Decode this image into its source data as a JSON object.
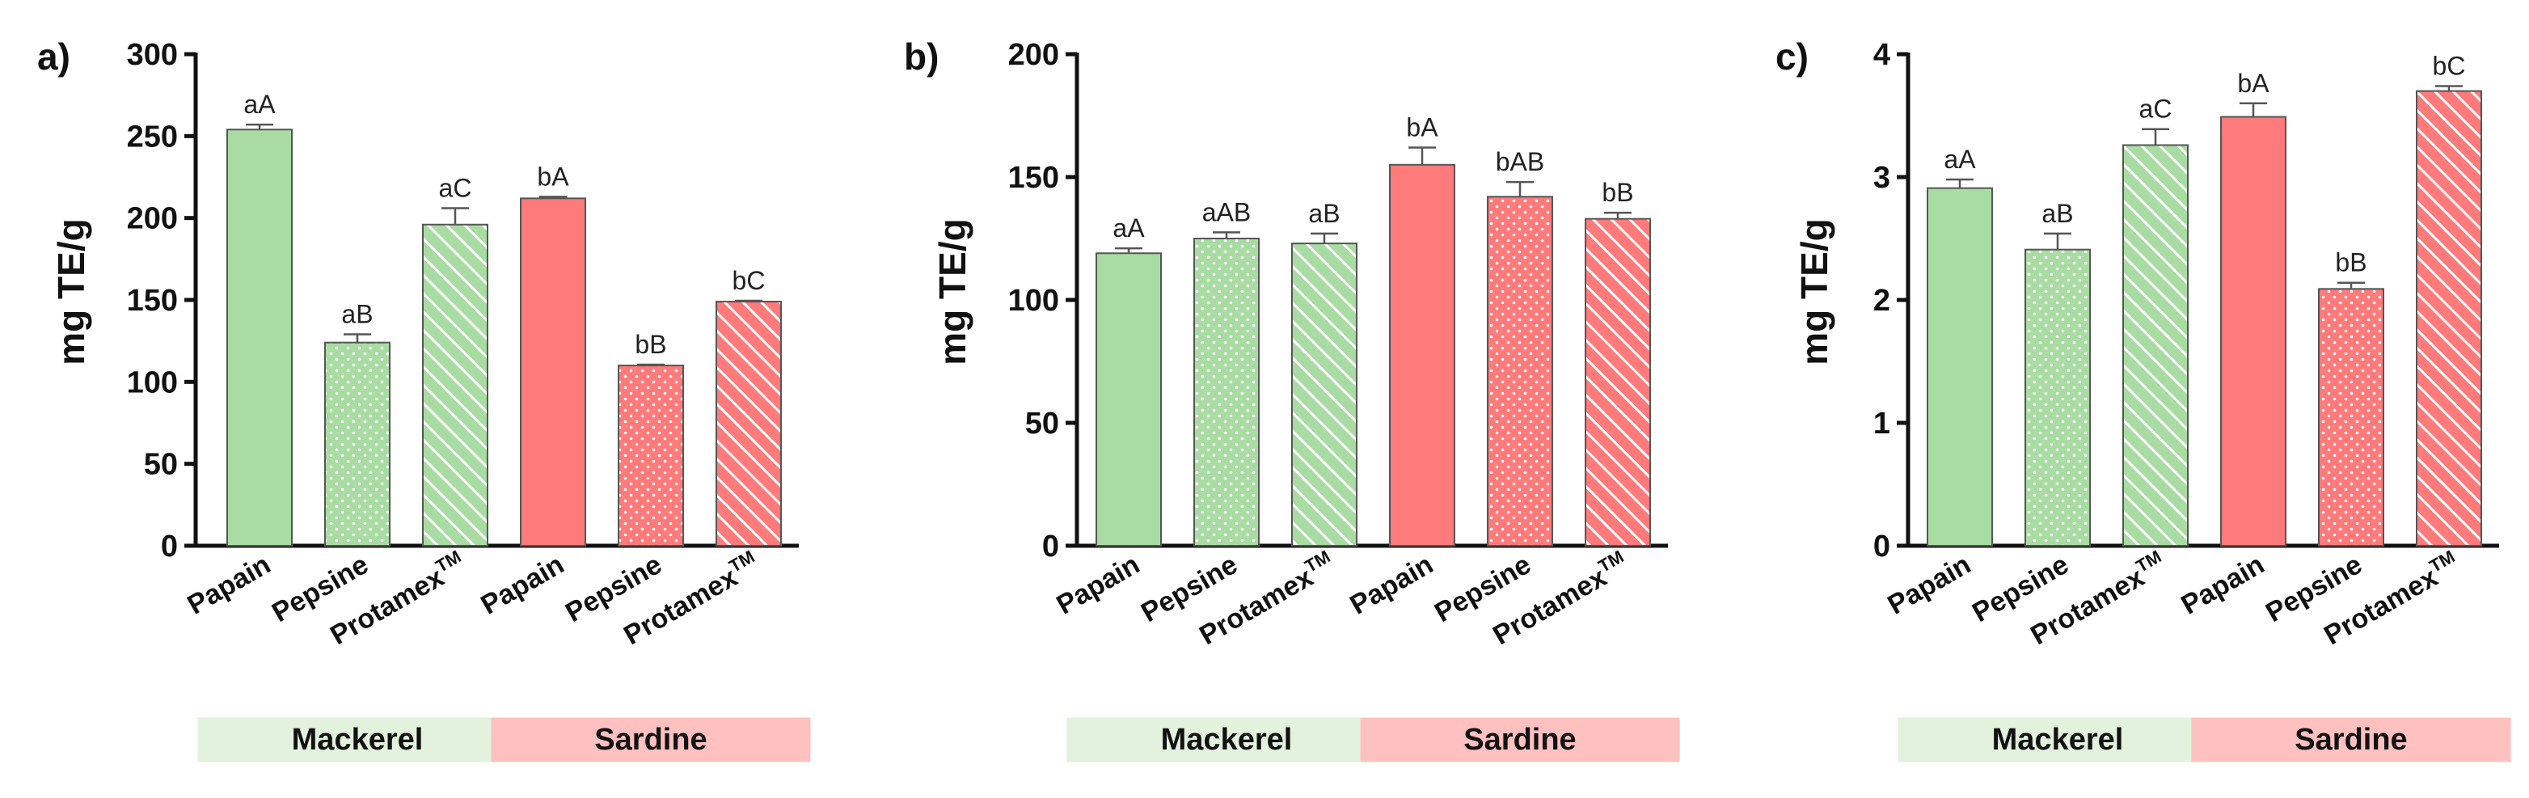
{
  "chart_data": [
    {
      "type": "bar",
      "panel_label": "a)",
      "ylabel": "mg TE/g",
      "ylim": [
        0,
        300
      ],
      "yticks": [
        0,
        50,
        100,
        150,
        200,
        250,
        300
      ],
      "categories": [
        "Papain",
        "Pepsine",
        "Protamex",
        "Papain",
        "Pepsine",
        "Protamex"
      ],
      "category_superscripts": [
        "",
        "",
        "TM",
        "",
        "",
        "TM"
      ],
      "groups": [
        {
          "name": "Mackerel",
          "start": 0,
          "end": 2,
          "color": "#e2f2dd"
        },
        {
          "name": "Sardine",
          "start": 3,
          "end": 5,
          "color": "#ffc0c0"
        }
      ],
      "values": [
        254,
        124,
        196,
        212,
        110,
        149
      ],
      "errors": [
        3,
        5,
        10,
        1,
        0.5,
        0.5
      ],
      "significance": [
        "aA",
        "aB",
        "aC",
        "bA",
        "bB",
        "bC"
      ],
      "fills": [
        "solid",
        "dots",
        "stripes",
        "solid",
        "dots",
        "stripes"
      ],
      "bar_colors": [
        "#a8dca2",
        "#a8dca2",
        "#a8dca2",
        "#ff7a7a",
        "#ff7a7a",
        "#ff7a7a"
      ]
    },
    {
      "type": "bar",
      "panel_label": "b)",
      "ylabel": "mg TE/g",
      "ylim": [
        0,
        200
      ],
      "yticks": [
        0,
        50,
        100,
        150,
        200
      ],
      "categories": [
        "Papain",
        "Pepsine",
        "Protamex",
        "Papain",
        "Pepsine",
        "Protamex"
      ],
      "category_superscripts": [
        "",
        "",
        "TM",
        "",
        "",
        "TM"
      ],
      "groups": [
        {
          "name": "Mackerel",
          "start": 0,
          "end": 2,
          "color": "#e2f2dd"
        },
        {
          "name": "Sardine",
          "start": 3,
          "end": 5,
          "color": "#ffc0c0"
        }
      ],
      "values": [
        119,
        125,
        123,
        155,
        142,
        133
      ],
      "errors": [
        2,
        2.5,
        4,
        7,
        6,
        2.5
      ],
      "significance": [
        "aA",
        "aAB",
        "aB",
        "bA",
        "bAB",
        "bB"
      ],
      "fills": [
        "solid",
        "dots",
        "stripes",
        "solid",
        "dots",
        "stripes"
      ],
      "bar_colors": [
        "#a8dca2",
        "#a8dca2",
        "#a8dca2",
        "#ff7a7a",
        "#ff7a7a",
        "#ff7a7a"
      ]
    },
    {
      "type": "bar",
      "panel_label": "c)",
      "ylabel": "mg TE/g",
      "ylim": [
        0,
        4
      ],
      "yticks": [
        0,
        1,
        2,
        3,
        4
      ],
      "categories": [
        "Papain",
        "Pepsine",
        "Protamex",
        "Papain",
        "Pepsine",
        "Protamex"
      ],
      "category_superscripts": [
        "",
        "",
        "TM",
        "",
        "",
        "TM"
      ],
      "groups": [
        {
          "name": "Mackerel",
          "start": 0,
          "end": 2,
          "color": "#e2f2dd"
        },
        {
          "name": "Sardine",
          "start": 3,
          "end": 5,
          "color": "#ffc0c0"
        }
      ],
      "values": [
        2.91,
        2.41,
        3.26,
        3.49,
        2.09,
        3.7
      ],
      "errors": [
        0.07,
        0.13,
        0.13,
        0.11,
        0.05,
        0.04
      ],
      "significance": [
        "aA",
        "aB",
        "aC",
        "bA",
        "bB",
        "bC"
      ],
      "fills": [
        "solid",
        "dots",
        "stripes",
        "solid",
        "dots",
        "stripes"
      ],
      "bar_colors": [
        "#a8dca2",
        "#a8dca2",
        "#a8dca2",
        "#ff7a7a",
        "#ff7a7a",
        "#ff7a7a"
      ]
    }
  ]
}
